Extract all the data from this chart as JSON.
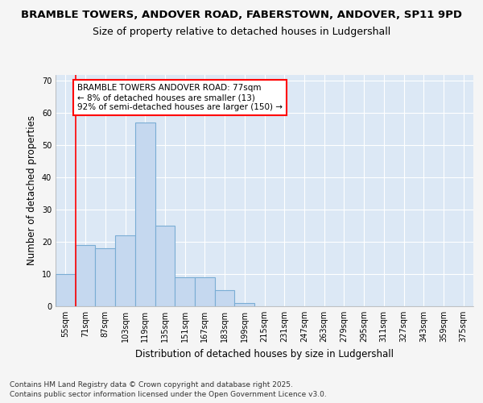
{
  "title_line1": "BRAMBLE TOWERS, ANDOVER ROAD, FABERSTOWN, ANDOVER, SP11 9PD",
  "title_line2": "Size of property relative to detached houses in Ludgershall",
  "xlabel": "Distribution of detached houses by size in Ludgershall",
  "ylabel": "Number of detached properties",
  "categories": [
    "55sqm",
    "71sqm",
    "87sqm",
    "103sqm",
    "119sqm",
    "135sqm",
    "151sqm",
    "167sqm",
    "183sqm",
    "199sqm",
    "215sqm",
    "231sqm",
    "247sqm",
    "263sqm",
    "279sqm",
    "295sqm",
    "311sqm",
    "327sqm",
    "343sqm",
    "359sqm",
    "375sqm"
  ],
  "values": [
    10,
    19,
    18,
    22,
    57,
    25,
    9,
    9,
    5,
    1,
    0,
    0,
    0,
    0,
    0,
    0,
    0,
    0,
    0,
    0,
    0
  ],
  "bar_color": "#c5d8ef",
  "bar_edgecolor": "#7aadd4",
  "red_line_index": 1,
  "annotation_text": "BRAMBLE TOWERS ANDOVER ROAD: 77sqm\n← 8% of detached houses are smaller (13)\n92% of semi-detached houses are larger (150) →",
  "ylim": [
    0,
    72
  ],
  "yticks": [
    0,
    10,
    20,
    30,
    40,
    50,
    60,
    70
  ],
  "footnote1": "Contains HM Land Registry data © Crown copyright and database right 2025.",
  "footnote2": "Contains public sector information licensed under the Open Government Licence v3.0.",
  "fig_bg_color": "#f5f5f5",
  "plot_bg_color": "#dce8f5",
  "title1_fontsize": 9.5,
  "title2_fontsize": 9,
  "axis_label_fontsize": 8.5,
  "tick_fontsize": 7,
  "annotation_fontsize": 7.5,
  "footnote_fontsize": 6.5
}
